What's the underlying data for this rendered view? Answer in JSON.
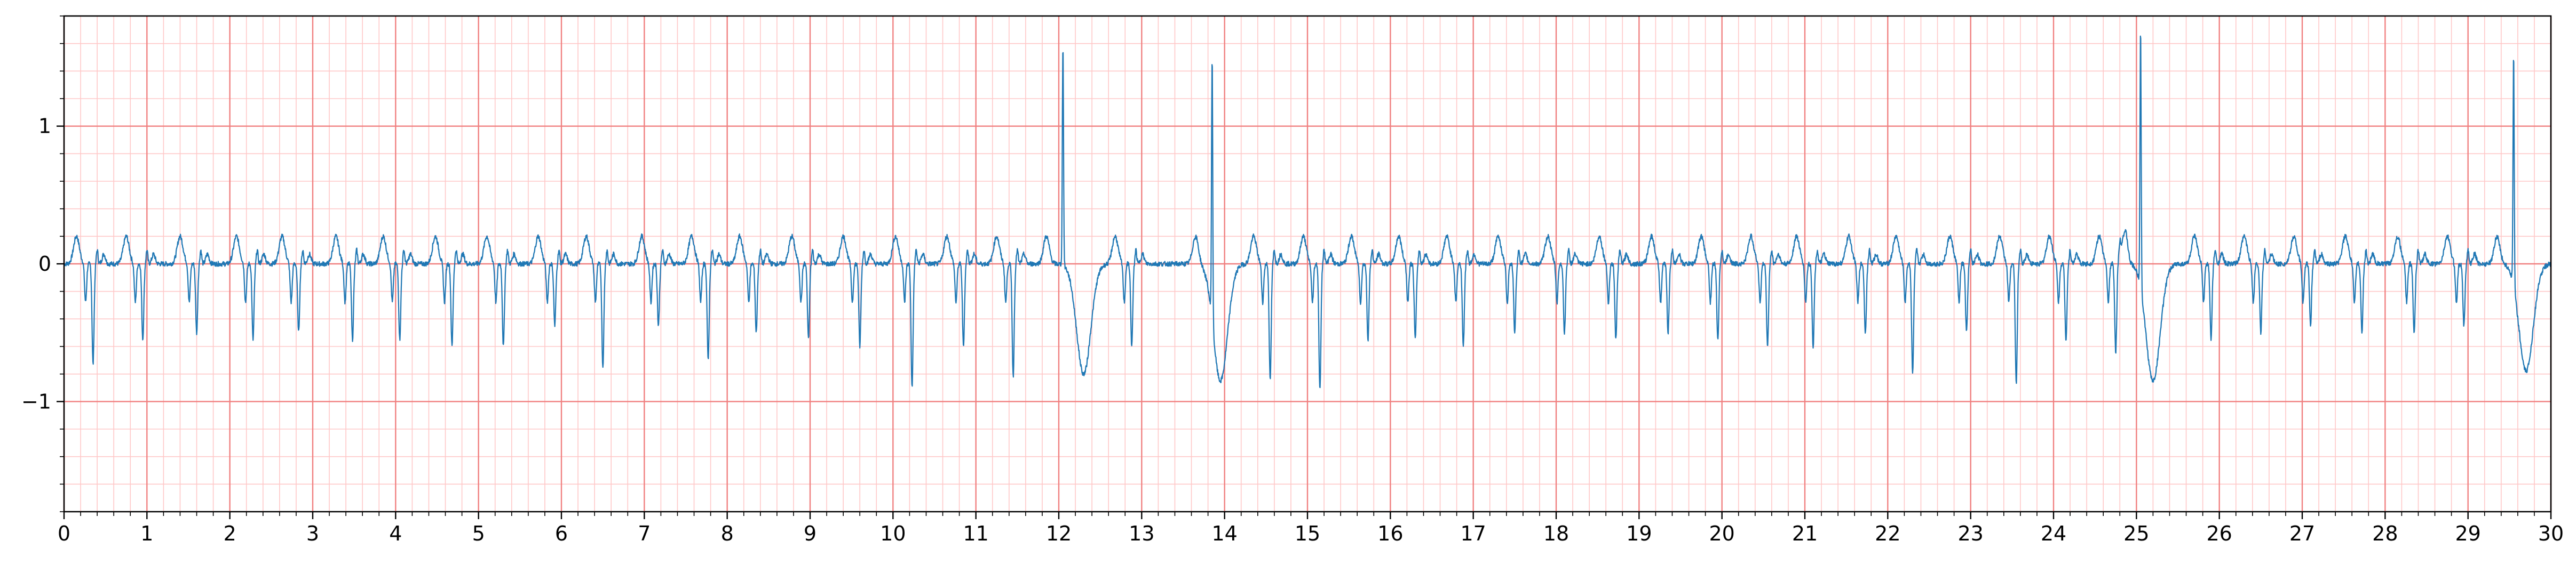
{
  "chart_data": {
    "type": "line",
    "title": "",
    "xlabel": "",
    "ylabel": "",
    "xlim": [
      0,
      30
    ],
    "ylim": [
      -1.8,
      1.8
    ],
    "grid": {
      "major": true,
      "minor": true,
      "major_x_step": 1,
      "major_y_step": 1,
      "minor_x_step": 0.2,
      "minor_y_step": 0.2,
      "major_color": "#f08080",
      "minor_color": "#ffc8c8"
    },
    "line_color": "#1f77b4",
    "background": "#ffffff",
    "x_ticks": [
      0,
      1,
      2,
      3,
      4,
      5,
      6,
      7,
      8,
      9,
      10,
      11,
      12,
      13,
      14,
      15,
      16,
      17,
      18,
      19,
      20,
      21,
      22,
      23,
      24,
      25,
      26,
      27,
      28,
      29,
      30
    ],
    "x_tick_labels": [
      "0",
      "1",
      "2",
      "3",
      "4",
      "5",
      "6",
      "7",
      "8",
      "9",
      "10",
      "11",
      "12",
      "13",
      "14",
      "15",
      "16",
      "17",
      "18",
      "19",
      "20",
      "21",
      "22",
      "23",
      "24",
      "25",
      "26",
      "27",
      "28",
      "29",
      "30"
    ],
    "y_ticks": [
      -1,
      0,
      1
    ],
    "y_tick_labels": [
      "−1",
      "0",
      "1"
    ],
    "beat_times": [
      0.35,
      0.95,
      1.6,
      2.28,
      2.83,
      3.48,
      4.05,
      4.68,
      5.3,
      5.92,
      6.5,
      7.17,
      7.77,
      8.35,
      8.98,
      9.6,
      10.23,
      10.85,
      11.45,
      12.05,
      12.88,
      13.85,
      14.55,
      15.15,
      15.73,
      16.3,
      16.88,
      17.5,
      18.1,
      18.72,
      19.35,
      19.95,
      20.55,
      21.1,
      21.73,
      22.3,
      22.95,
      23.55,
      24.15,
      24.75,
      25.05,
      25.9,
      26.5,
      27.1,
      27.72,
      28.35,
      28.95,
      29.55
    ],
    "beat_amplitudes": [
      -0.73,
      -0.55,
      -0.5,
      -0.55,
      -0.5,
      -0.55,
      -0.55,
      -0.6,
      -0.6,
      -0.45,
      -0.75,
      -0.45,
      -0.7,
      -0.5,
      -0.55,
      -0.6,
      -0.9,
      -0.6,
      -0.82,
      1.62,
      -0.6,
      1.95,
      -0.85,
      -0.92,
      -0.55,
      -0.55,
      -0.6,
      -0.5,
      -0.5,
      -0.55,
      -0.5,
      -0.55,
      -0.6,
      -0.6,
      -0.5,
      -0.8,
      -0.5,
      -0.87,
      -0.55,
      -0.65,
      1.9,
      -0.55,
      -0.5,
      -0.45,
      -0.5,
      -0.5,
      -0.45,
      1.7
    ],
    "broad_wave_times": [
      12.3,
      13.95,
      25.2,
      29.7
    ],
    "broad_wave_amplitudes": [
      -0.8,
      -0.85,
      -0.85,
      -0.78
    ]
  }
}
